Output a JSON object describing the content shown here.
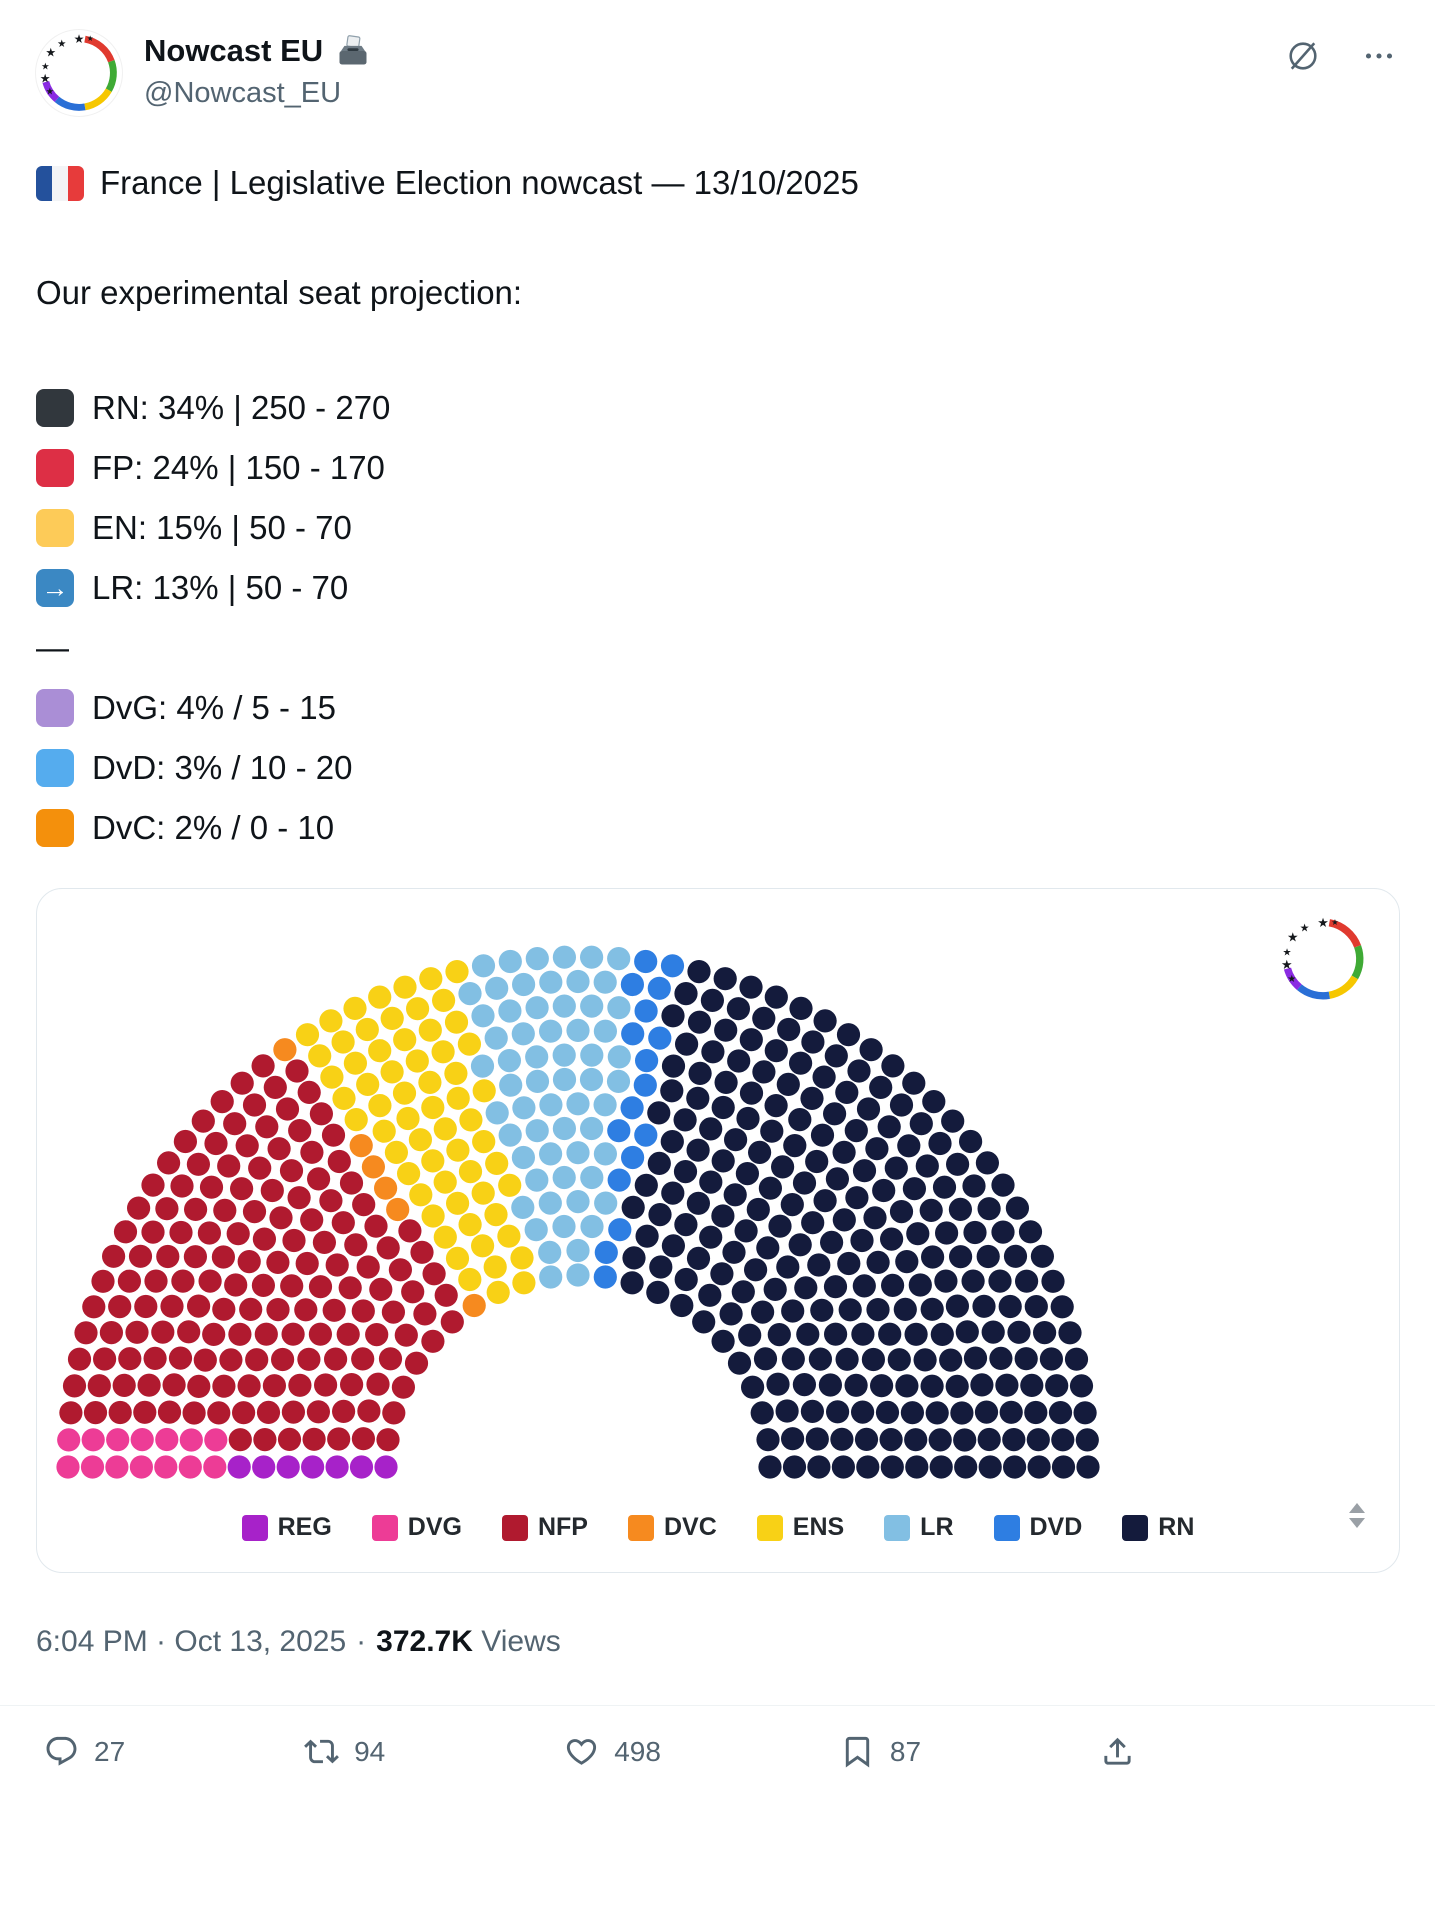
{
  "header": {
    "display_name": "Nowcast EU",
    "name_emoji": "🗳️",
    "handle": "@Nowcast_EU"
  },
  "tweet": {
    "flag_emoji": "🇫🇷",
    "headline": "France | Legislative Election nowcast — 13/10/2025",
    "intro": "Our experimental seat projection:",
    "projection_lines": [
      {
        "label": "RN: 34% | 250 - 270",
        "swatch_color": "#31373d"
      },
      {
        "label": "FP: 24% | 150 - 170",
        "swatch_color": "#dd2f45"
      },
      {
        "label": "EN: 15% | 50 - 70",
        "swatch_color": "#fdcb58"
      },
      {
        "label": "LR: 13% | 50 - 70",
        "swatch_color": "#3b88c3",
        "arrow_glyph": "→"
      }
    ],
    "divider": "—",
    "secondary_lines": [
      {
        "label": "DvG: 4% / 5 - 15",
        "swatch_color": "#aa8ed6"
      },
      {
        "label": "DvD: 3% / 10 - 20",
        "swatch_color": "#55acee"
      },
      {
        "label": "DvC: 2% / 0 - 10",
        "swatch_color": "#f4900c"
      }
    ]
  },
  "chart_data": {
    "type": "parliament",
    "total_seats": 577,
    "legend_position": "bottom",
    "series": [
      {
        "name": "REG",
        "color": "#a722c9",
        "seats": 7
      },
      {
        "name": "DVG",
        "color": "#ed3c96",
        "seats": 14
      },
      {
        "name": "NFP",
        "color": "#b01a2f",
        "seats": 158
      },
      {
        "name": "DVC",
        "color": "#f68a1f",
        "seats": 6
      },
      {
        "name": "ENS",
        "color": "#f8d116",
        "seats": 62
      },
      {
        "name": "LR",
        "color": "#82bfe3",
        "seats": 61
      },
      {
        "name": "DVD",
        "color": "#2e7ee2",
        "seats": 17
      },
      {
        "name": "RN",
        "color": "#141b3c",
        "seats": 252
      }
    ]
  },
  "footer": {
    "datetime": "6:04 PM · Oct 13, 2025",
    "separator": "·",
    "views_count": "372.7K",
    "views_label": "Views"
  },
  "actions": {
    "reply_count": "27",
    "repost_count": "94",
    "like_count": "498",
    "bookmark_count": "87"
  }
}
